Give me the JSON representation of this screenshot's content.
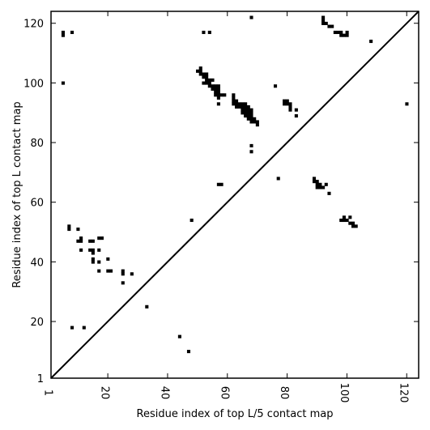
{
  "chart_data": {
    "type": "heatmap",
    "title": "",
    "xlabel": "Residue index of top L/5 contact map",
    "ylabel": "Residue index of top L contact map",
    "xlim": [
      1,
      124
    ],
    "ylim": [
      1,
      124
    ],
    "x_ticks": [
      1,
      20,
      40,
      60,
      80,
      100,
      120
    ],
    "y_ticks": [
      1,
      20,
      40,
      60,
      80,
      100,
      120
    ],
    "diagonal_line": true,
    "color": "#000000",
    "points": [
      [
        5,
        117
      ],
      [
        5,
        116
      ],
      [
        8,
        117
      ],
      [
        5,
        100
      ],
      [
        68,
        122
      ],
      [
        92,
        122
      ],
      [
        92,
        121
      ],
      [
        92,
        120
      ],
      [
        93,
        120
      ],
      [
        94,
        119
      ],
      [
        95,
        119
      ],
      [
        96,
        117
      ],
      [
        97,
        117
      ],
      [
        98,
        117
      ],
      [
        98,
        116
      ],
      [
        99,
        116
      ],
      [
        100,
        116
      ],
      [
        100,
        117
      ],
      [
        108,
        114
      ],
      [
        120,
        93
      ],
      [
        52,
        117
      ],
      [
        54,
        117
      ],
      [
        50,
        104
      ],
      [
        51,
        104
      ],
      [
        51,
        105
      ],
      [
        51,
        103
      ],
      [
        52,
        103
      ],
      [
        53,
        103
      ],
      [
        52,
        102
      ],
      [
        53,
        102
      ],
      [
        54,
        101
      ],
      [
        53,
        101
      ],
      [
        55,
        101
      ],
      [
        52,
        100
      ],
      [
        53,
        100
      ],
      [
        54,
        100
      ],
      [
        54,
        99
      ],
      [
        55,
        99
      ],
      [
        56,
        99
      ],
      [
        57,
        99
      ],
      [
        55,
        98
      ],
      [
        56,
        98
      ],
      [
        57,
        98
      ],
      [
        56,
        97
      ],
      [
        57,
        97
      ],
      [
        56,
        96
      ],
      [
        57,
        96
      ],
      [
        58,
        96
      ],
      [
        59,
        96
      ],
      [
        57,
        95
      ],
      [
        57,
        93
      ],
      [
        76,
        99
      ],
      [
        62,
        96
      ],
      [
        62,
        95
      ],
      [
        62,
        94
      ],
      [
        63,
        94
      ],
      [
        62,
        93
      ],
      [
        63,
        93
      ],
      [
        64,
        93
      ],
      [
        65,
        93
      ],
      [
        66,
        93
      ],
      [
        63,
        92
      ],
      [
        64,
        92
      ],
      [
        65,
        92
      ],
      [
        66,
        92
      ],
      [
        67,
        92
      ],
      [
        65,
        91
      ],
      [
        66,
        91
      ],
      [
        67,
        91
      ],
      [
        68,
        91
      ],
      [
        65,
        90
      ],
      [
        66,
        90
      ],
      [
        67,
        90
      ],
      [
        68,
        90
      ],
      [
        66,
        89
      ],
      [
        67,
        89
      ],
      [
        68,
        89
      ],
      [
        67,
        88
      ],
      [
        68,
        88
      ],
      [
        69,
        88
      ],
      [
        68,
        87
      ],
      [
        69,
        87
      ],
      [
        70,
        87
      ],
      [
        70,
        86
      ],
      [
        79,
        94
      ],
      [
        80,
        94
      ],
      [
        79,
        93
      ],
      [
        80,
        93
      ],
      [
        81,
        93
      ],
      [
        81,
        92
      ],
      [
        81,
        91
      ],
      [
        83,
        91
      ],
      [
        83,
        89
      ],
      [
        68,
        79
      ],
      [
        68,
        77
      ],
      [
        77,
        68
      ],
      [
        57,
        66
      ],
      [
        58,
        66
      ],
      [
        89,
        68
      ],
      [
        89,
        67
      ],
      [
        90,
        67
      ],
      [
        90,
        66
      ],
      [
        91,
        66
      ],
      [
        90,
        65
      ],
      [
        91,
        65
      ],
      [
        92,
        65
      ],
      [
        93,
        66
      ],
      [
        94,
        63
      ],
      [
        98,
        54
      ],
      [
        99,
        55
      ],
      [
        99,
        54
      ],
      [
        100,
        54
      ],
      [
        101,
        55
      ],
      [
        101,
        53
      ],
      [
        102,
        53
      ],
      [
        102,
        52
      ],
      [
        103,
        52
      ],
      [
        48,
        54
      ],
      [
        7,
        52
      ],
      [
        7,
        51
      ],
      [
        10,
        51
      ],
      [
        10,
        47
      ],
      [
        11,
        48
      ],
      [
        11,
        47
      ],
      [
        14,
        47
      ],
      [
        15,
        47
      ],
      [
        17,
        48
      ],
      [
        18,
        48
      ],
      [
        11,
        44
      ],
      [
        14,
        44
      ],
      [
        15,
        44
      ],
      [
        15,
        43
      ],
      [
        17,
        44
      ],
      [
        15,
        41
      ],
      [
        15,
        40
      ],
      [
        17,
        40
      ],
      [
        20,
        41
      ],
      [
        17,
        37
      ],
      [
        20,
        37
      ],
      [
        21,
        37
      ],
      [
        25,
        37
      ],
      [
        25,
        36
      ],
      [
        28,
        36
      ],
      [
        25,
        33
      ],
      [
        33,
        25
      ],
      [
        8,
        18
      ],
      [
        12,
        18
      ],
      [
        44,
        15
      ],
      [
        47,
        10
      ]
    ]
  }
}
